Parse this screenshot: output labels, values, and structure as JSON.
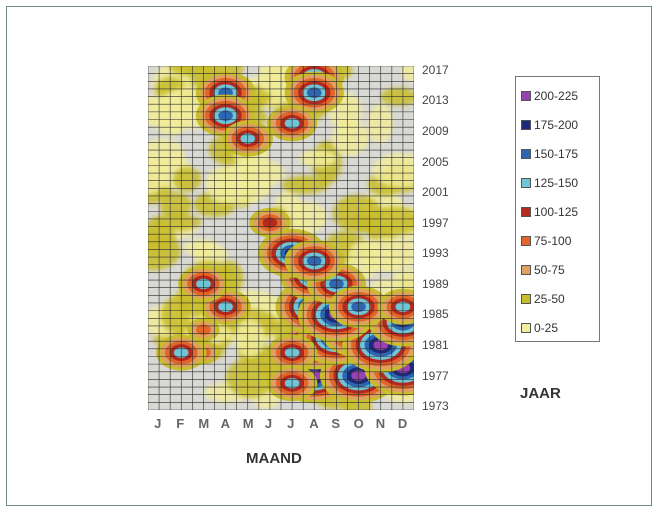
{
  "chart_data": {
    "type": "heatmap",
    "xlabel": "MAAND",
    "ylabel": "JAAR",
    "x_categories": [
      "J",
      "F",
      "M",
      "A",
      "M",
      "J",
      "J",
      "A",
      "S",
      "O",
      "N",
      "D"
    ],
    "y_ticks": [
      2017,
      2013,
      2009,
      2005,
      2001,
      1997,
      1993,
      1989,
      1985,
      1981,
      1977,
      1973
    ],
    "y_range": [
      1973,
      2017
    ],
    "legend": [
      {
        "label": "200-225",
        "color": "#9b3fb5"
      },
      {
        "label": "175-200",
        "color": "#1d2a7a"
      },
      {
        "label": "150-175",
        "color": "#2f66b3"
      },
      {
        "label": "125-150",
        "color": "#6fc5d6"
      },
      {
        "label": "100-125",
        "color": "#b52a1f"
      },
      {
        "label": "75-100",
        "color": "#e2662a"
      },
      {
        "label": "50-75",
        "color": "#e0a060"
      },
      {
        "label": "25-50",
        "color": "#c8bd2c"
      },
      {
        "label": "0-25",
        "color": "#f2ed9a"
      }
    ],
    "hotspots": [
      {
        "month": 7,
        "year": 1977,
        "level": 8
      },
      {
        "month": 9,
        "year": 1977,
        "level": 8
      },
      {
        "month": 11,
        "year": 1978,
        "level": 8
      },
      {
        "month": 7,
        "year": 1981,
        "level": 7
      },
      {
        "month": 8,
        "year": 1982,
        "level": 8
      },
      {
        "month": 9,
        "year": 1983,
        "level": 8
      },
      {
        "month": 10,
        "year": 1981,
        "level": 8
      },
      {
        "month": 11,
        "year": 1984,
        "level": 7
      },
      {
        "month": 7,
        "year": 1986,
        "level": 8
      },
      {
        "month": 8,
        "year": 1985,
        "level": 8
      },
      {
        "month": 7,
        "year": 1990,
        "level": 7
      },
      {
        "month": 8,
        "year": 1989,
        "level": 6
      },
      {
        "month": 6,
        "year": 1993,
        "level": 7
      },
      {
        "month": 7,
        "year": 1992,
        "level": 6
      },
      {
        "month": 9,
        "year": 1986,
        "level": 6
      },
      {
        "month": 11,
        "year": 1986,
        "level": 5
      },
      {
        "month": 2,
        "year": 1983,
        "level": 3
      },
      {
        "month": 2,
        "year": 1980,
        "level": 3
      },
      {
        "month": 1,
        "year": 1980,
        "level": 5
      },
      {
        "month": 3,
        "year": 1986,
        "level": 5
      },
      {
        "month": 2,
        "year": 1989,
        "level": 5
      },
      {
        "month": 6,
        "year": 1980,
        "level": 5
      },
      {
        "month": 6,
        "year": 1976,
        "level": 5
      },
      {
        "month": 3,
        "year": 2014,
        "level": 6
      },
      {
        "month": 3,
        "year": 2011,
        "level": 6
      },
      {
        "month": 7,
        "year": 2016,
        "level": 6
      },
      {
        "month": 7,
        "year": 2014,
        "level": 6
      },
      {
        "month": 6,
        "year": 2010,
        "level": 5
      },
      {
        "month": 5,
        "year": 1997,
        "level": 4
      },
      {
        "month": 4,
        "year": 2008,
        "level": 5
      }
    ]
  }
}
